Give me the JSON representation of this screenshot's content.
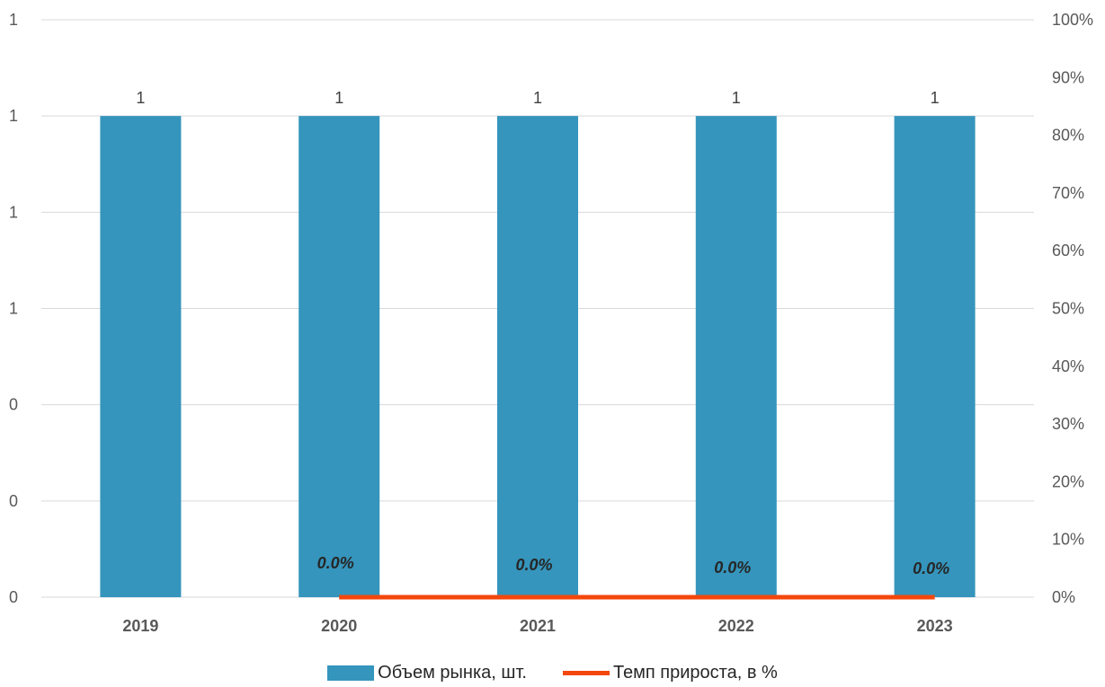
{
  "chart_data": {
    "type": "bar",
    "categories": [
      "2019",
      "2020",
      "2021",
      "2022",
      "2023"
    ],
    "series": [
      {
        "name": "Объем рынка, шт.",
        "type": "bar",
        "axis": "left",
        "values": [
          1,
          1,
          1,
          1,
          1
        ],
        "data_labels": [
          "1",
          "1",
          "1",
          "1",
          "1"
        ],
        "color": "#3595bc"
      },
      {
        "name": "Темп прироста, в %",
        "type": "line",
        "axis": "right",
        "values": [
          null,
          0,
          0,
          0,
          0
        ],
        "data_labels": [
          "",
          "0.0%",
          "0.0%",
          "0.0%",
          "0.0%"
        ],
        "color": "#f4470c"
      }
    ],
    "left_axis": {
      "ylim": [
        0,
        1.2
      ],
      "ticks": [
        0,
        0.2,
        0.4,
        0.6,
        0.8,
        1.0,
        1.2
      ],
      "tick_labels": [
        "0",
        "0",
        "0",
        "1",
        "1",
        "1",
        "1"
      ]
    },
    "right_axis": {
      "ylim": [
        0,
        1.0
      ],
      "ticks": [
        0,
        0.1,
        0.2,
        0.3,
        0.4,
        0.5,
        0.6,
        0.7,
        0.8,
        0.9,
        1.0
      ],
      "tick_labels": [
        "0%",
        "10%",
        "20%",
        "30%",
        "40%",
        "50%",
        "60%",
        "70%",
        "80%",
        "90%",
        "100%"
      ]
    },
    "grid": true,
    "legend_position": "bottom",
    "title": "",
    "xlabel": "",
    "ylabel": ""
  },
  "colors": {
    "gridline": "#d9d9d9",
    "bar": "#3595bc",
    "line": "#f4470c"
  }
}
